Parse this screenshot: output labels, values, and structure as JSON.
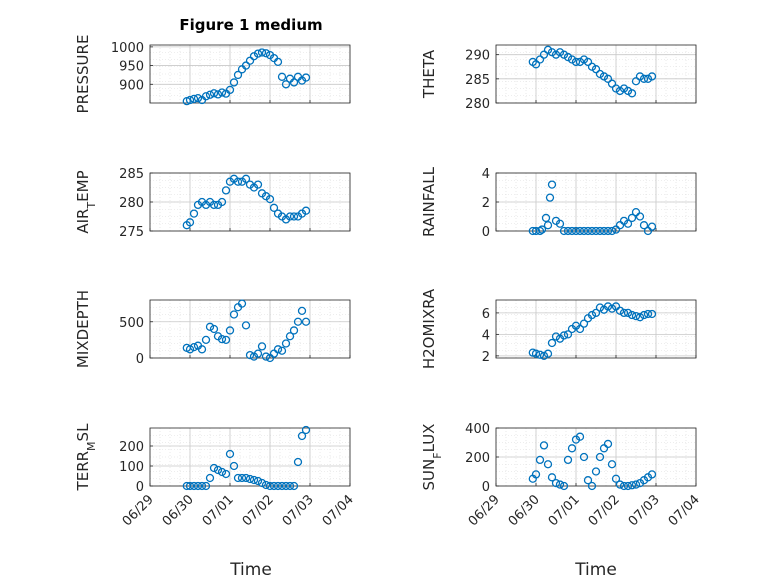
{
  "figure": {
    "title": "Figure 1 medium",
    "xlabel": "Time"
  },
  "x_tick_labels": [
    "06/29",
    "06/30",
    "07/01",
    "07/02",
    "07/03",
    "07/04"
  ],
  "marker_color": "#0072BD",
  "chart_data": [
    {
      "type": "scatter",
      "ylabel": "PRESSURE",
      "yticks": [
        "900",
        "950",
        "1000"
      ],
      "ylim": [
        850,
        1005
      ],
      "grid": true,
      "x": [
        0.92,
        1.0,
        1.1,
        1.2,
        1.3,
        1.4,
        1.5,
        1.6,
        1.7,
        1.8,
        1.9,
        2.0,
        2.1,
        2.2,
        2.3,
        2.4,
        2.5,
        2.6,
        2.7,
        2.8,
        2.9,
        3.0,
        3.1,
        3.2,
        3.3,
        3.4,
        3.5,
        3.6,
        3.7,
        3.8,
        3.9
      ],
      "y": [
        855,
        858,
        861,
        863,
        858,
        868,
        872,
        876,
        873,
        878,
        875,
        885,
        905,
        925,
        940,
        950,
        963,
        975,
        982,
        985,
        983,
        978,
        970,
        960,
        920,
        900,
        915,
        905,
        920,
        910,
        918
      ]
    },
    {
      "type": "scatter",
      "ylabel": "THETA",
      "yticks": [
        "280",
        "285",
        "290"
      ],
      "ylim": [
        280,
        292
      ],
      "grid": true,
      "x": [
        0.92,
        1.0,
        1.1,
        1.2,
        1.3,
        1.4,
        1.5,
        1.6,
        1.7,
        1.8,
        1.9,
        2.0,
        2.1,
        2.2,
        2.3,
        2.4,
        2.5,
        2.6,
        2.7,
        2.8,
        2.9,
        3.0,
        3.1,
        3.2,
        3.3,
        3.4,
        3.5,
        3.6,
        3.7,
        3.8,
        3.9
      ],
      "y": [
        288.5,
        288,
        289,
        290,
        291,
        290.5,
        290,
        290.5,
        290,
        289.5,
        289,
        288.5,
        288.5,
        289,
        288.5,
        287.5,
        287,
        286,
        285.5,
        285,
        284,
        283,
        282.5,
        283,
        282.5,
        282,
        284.5,
        285.5,
        285,
        285,
        285.5
      ]
    },
    {
      "type": "scatter",
      "ylabel": "AIR_TEMP",
      "yticks": [
        "275",
        "280",
        "285"
      ],
      "ylim": [
        275,
        285
      ],
      "grid": true,
      "x": [
        0.92,
        1.0,
        1.1,
        1.2,
        1.3,
        1.4,
        1.5,
        1.6,
        1.7,
        1.8,
        1.9,
        2.0,
        2.1,
        2.2,
        2.3,
        2.4,
        2.5,
        2.6,
        2.7,
        2.8,
        2.9,
        3.0,
        3.1,
        3.2,
        3.3,
        3.4,
        3.5,
        3.6,
        3.7,
        3.8,
        3.9
      ],
      "y": [
        276,
        276.5,
        278,
        279.5,
        280,
        279.5,
        280,
        279.5,
        279.5,
        280,
        282,
        283.5,
        284,
        283.5,
        283.5,
        284,
        283,
        282.5,
        283,
        281.5,
        281,
        280.5,
        279,
        278,
        277.5,
        277,
        277.5,
        277.5,
        277.5,
        278,
        278.5
      ]
    },
    {
      "type": "scatter",
      "ylabel": "RAINFALL",
      "yticks": [
        "0",
        "2",
        "4"
      ],
      "ylim": [
        0,
        4
      ],
      "grid": true,
      "x": [
        0.92,
        1.0,
        1.1,
        1.15,
        1.25,
        1.3,
        1.35,
        1.4,
        1.5,
        1.6,
        1.7,
        1.8,
        1.9,
        2.0,
        2.1,
        2.2,
        2.3,
        2.4,
        2.5,
        2.6,
        2.7,
        2.8,
        2.9,
        3.0,
        3.1,
        3.2,
        3.3,
        3.4,
        3.5,
        3.6,
        3.7,
        3.8,
        3.9
      ],
      "y": [
        0,
        0,
        0,
        0.1,
        0.9,
        0.4,
        2.3,
        3.2,
        0.7,
        0.5,
        0,
        0,
        0,
        0,
        0,
        0,
        0,
        0,
        0,
        0,
        0,
        0,
        0,
        0.1,
        0.4,
        0.7,
        0.5,
        0.9,
        1.3,
        1.0,
        0.4,
        0,
        0.3
      ]
    },
    {
      "type": "scatter",
      "ylabel": "MIXDEPTH",
      "yticks": [
        "0",
        "500"
      ],
      "ylim": [
        0,
        800
      ],
      "grid": true,
      "x": [
        0.92,
        1.0,
        1.1,
        1.2,
        1.3,
        1.4,
        1.5,
        1.6,
        1.7,
        1.8,
        1.9,
        2.0,
        2.1,
        2.2,
        2.3,
        2.4,
        2.5,
        2.6,
        2.7,
        2.8,
        2.9,
        3.0,
        3.1,
        3.2,
        3.3,
        3.4,
        3.5,
        3.6,
        3.7,
        3.8,
        3.9
      ],
      "y": [
        140,
        120,
        150,
        170,
        120,
        250,
        430,
        400,
        300,
        260,
        250,
        380,
        600,
        700,
        750,
        450,
        40,
        20,
        60,
        160,
        20,
        0,
        60,
        120,
        100,
        200,
        300,
        380,
        500,
        650,
        500
      ]
    },
    {
      "type": "scatter",
      "ylabel": "H2OMIXRA",
      "yticks": [
        "2",
        "4",
        "6"
      ],
      "ylim": [
        1.8,
        7.2
      ],
      "grid": true,
      "x": [
        0.92,
        1.0,
        1.1,
        1.2,
        1.3,
        1.4,
        1.5,
        1.6,
        1.7,
        1.8,
        1.9,
        2.0,
        2.1,
        2.2,
        2.3,
        2.4,
        2.5,
        2.6,
        2.7,
        2.8,
        2.9,
        3.0,
        3.1,
        3.2,
        3.3,
        3.4,
        3.5,
        3.6,
        3.7,
        3.8,
        3.9
      ],
      "y": [
        2.3,
        2.2,
        2.1,
        2.0,
        2.2,
        3.2,
        3.8,
        3.6,
        3.9,
        4.0,
        4.5,
        4.8,
        4.5,
        5.0,
        5.5,
        5.8,
        6.0,
        6.5,
        6.3,
        6.6,
        6.4,
        6.6,
        6.2,
        6.0,
        6.0,
        5.8,
        5.7,
        5.6,
        5.8,
        5.9,
        5.9
      ]
    },
    {
      "type": "scatter",
      "ylabel": "TERR_MSL",
      "yticks": [
        "0",
        "100",
        "200"
      ],
      "ylim": [
        0,
        290
      ],
      "grid": true,
      "x": [
        0.92,
        1.0,
        1.1,
        1.2,
        1.3,
        1.4,
        1.5,
        1.6,
        1.7,
        1.8,
        1.9,
        2.0,
        2.1,
        2.2,
        2.3,
        2.4,
        2.5,
        2.6,
        2.7,
        2.8,
        2.9,
        3.0,
        3.1,
        3.2,
        3.3,
        3.4,
        3.5,
        3.6,
        3.7,
        3.8,
        3.9
      ],
      "y": [
        0,
        0,
        0,
        0,
        0,
        0,
        40,
        90,
        80,
        70,
        60,
        160,
        100,
        40,
        40,
        40,
        35,
        30,
        25,
        15,
        5,
        0,
        0,
        0,
        0,
        0,
        0,
        0,
        120,
        250,
        280
      ]
    },
    {
      "type": "scatter",
      "ylabel": "SUN_FLUX",
      "yticks": [
        "0",
        "200",
        "400"
      ],
      "ylim": [
        0,
        400
      ],
      "grid": true,
      "x": [
        0.92,
        1.0,
        1.1,
        1.2,
        1.3,
        1.4,
        1.5,
        1.6,
        1.7,
        1.8,
        1.9,
        2.0,
        2.1,
        2.2,
        2.3,
        2.4,
        2.5,
        2.6,
        2.7,
        2.8,
        2.9,
        3.0,
        3.1,
        3.2,
        3.3,
        3.4,
        3.5,
        3.6,
        3.7,
        3.8,
        3.9
      ],
      "y": [
        50,
        80,
        180,
        280,
        150,
        60,
        20,
        10,
        0,
        180,
        260,
        320,
        340,
        200,
        40,
        0,
        100,
        200,
        260,
        290,
        150,
        50,
        10,
        0,
        0,
        5,
        10,
        20,
        40,
        60,
        80
      ]
    }
  ]
}
